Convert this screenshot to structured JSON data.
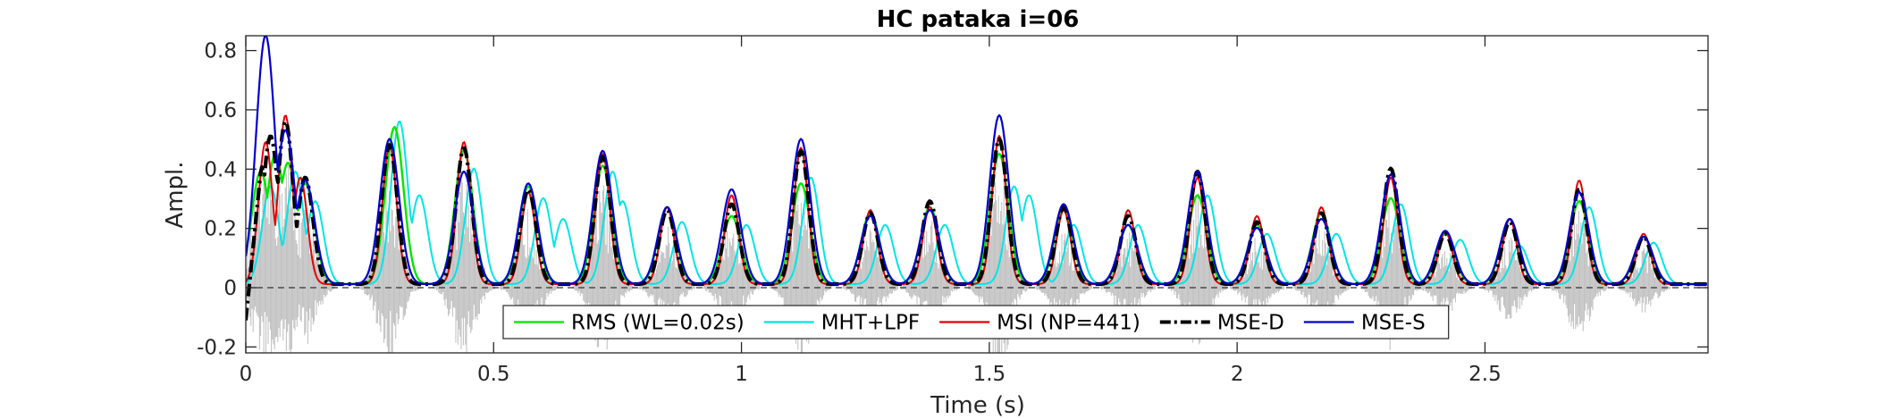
{
  "chart_data": {
    "type": "line",
    "title": "HC pataka i=06",
    "xlabel": "Time (s)",
    "ylabel": "Ampl.",
    "xlim": [
      0,
      2.95
    ],
    "ylim": [
      -0.22,
      0.85
    ],
    "xticks": [
      0,
      0.5,
      1,
      1.5,
      2,
      2.5
    ],
    "xtick_labels": [
      "0",
      "0.5",
      "1",
      "1.5",
      "2",
      "2.5"
    ],
    "yticks": [
      -0.2,
      0,
      0.2,
      0.4,
      0.6,
      0.8
    ],
    "ytick_labels": [
      "-0.2",
      "0",
      "0.2",
      "0.4",
      "0.6",
      "0.8"
    ],
    "zero_line": true,
    "legend_position": "bottom-center",
    "colors": {
      "signal": "#bdbdbd",
      "rms": "#00e600",
      "mht": "#00e5e5",
      "msi": "#e60000",
      "mse_d": "#000000",
      "mse_s": "#0000cc"
    },
    "background_signal": {
      "name": "",
      "color": "#bdbdbd",
      "envelope_peak_scale": 0.85,
      "negative_scale": 0.55
    },
    "series": [
      {
        "name": "RMS (WL=0.02s)",
        "key": "rms",
        "color": "#00e600",
        "style": "solid",
        "peaks": [
          [
            0.03,
            0.38
          ],
          [
            0.06,
            0.44
          ],
          [
            0.085,
            0.41
          ],
          [
            0.12,
            0.34
          ],
          [
            0.3,
            0.53
          ],
          [
            0.44,
            0.45
          ],
          [
            0.57,
            0.33
          ],
          [
            0.72,
            0.4
          ],
          [
            0.85,
            0.26
          ],
          [
            0.98,
            0.23
          ],
          [
            1.12,
            0.34
          ],
          [
            1.26,
            0.24
          ],
          [
            1.38,
            0.26
          ],
          [
            1.52,
            0.44
          ],
          [
            1.65,
            0.25
          ],
          [
            1.78,
            0.2
          ],
          [
            1.92,
            0.3
          ],
          [
            2.04,
            0.2
          ],
          [
            2.17,
            0.24
          ],
          [
            2.31,
            0.29
          ],
          [
            2.42,
            0.17
          ],
          [
            2.55,
            0.22
          ],
          [
            2.69,
            0.28
          ],
          [
            2.82,
            0.16
          ]
        ]
      },
      {
        "name": "MHT+LPF",
        "key": "mht",
        "color": "#00e5e5",
        "style": "solid",
        "peaks": [
          [
            0.05,
            0.33
          ],
          [
            0.1,
            0.38
          ],
          [
            0.14,
            0.28
          ],
          [
            0.31,
            0.55
          ],
          [
            0.35,
            0.3
          ],
          [
            0.46,
            0.39
          ],
          [
            0.6,
            0.29
          ],
          [
            0.64,
            0.22
          ],
          [
            0.74,
            0.38
          ],
          [
            0.76,
            0.28
          ],
          [
            0.88,
            0.21
          ],
          [
            1.01,
            0.2
          ],
          [
            1.14,
            0.36
          ],
          [
            1.29,
            0.2
          ],
          [
            1.41,
            0.2
          ],
          [
            1.55,
            0.33
          ],
          [
            1.58,
            0.3
          ],
          [
            1.67,
            0.2
          ],
          [
            1.8,
            0.2
          ],
          [
            1.94,
            0.3
          ],
          [
            2.06,
            0.17
          ],
          [
            2.2,
            0.17
          ],
          [
            2.33,
            0.27
          ],
          [
            2.45,
            0.15
          ],
          [
            2.57,
            0.13
          ],
          [
            2.71,
            0.26
          ],
          [
            2.84,
            0.14
          ]
        ]
      },
      {
        "name": "MSI (NP=441)",
        "key": "msi",
        "color": "#e60000",
        "style": "solid",
        "peaks": [
          [
            0.04,
            0.48
          ],
          [
            0.08,
            0.57
          ],
          [
            0.11,
            0.36
          ],
          [
            0.29,
            0.47
          ],
          [
            0.44,
            0.48
          ],
          [
            0.57,
            0.31
          ],
          [
            0.72,
            0.44
          ],
          [
            0.85,
            0.26
          ],
          [
            0.98,
            0.3
          ],
          [
            1.12,
            0.46
          ],
          [
            1.26,
            0.25
          ],
          [
            1.38,
            0.26
          ],
          [
            1.52,
            0.5
          ],
          [
            1.65,
            0.25
          ],
          [
            1.78,
            0.25
          ],
          [
            1.92,
            0.36
          ],
          [
            2.04,
            0.23
          ],
          [
            2.17,
            0.26
          ],
          [
            2.31,
            0.36
          ],
          [
            2.42,
            0.18
          ],
          [
            2.55,
            0.22
          ],
          [
            2.69,
            0.35
          ],
          [
            2.82,
            0.17
          ]
        ]
      },
      {
        "name": "MSE-D",
        "key": "mse_d",
        "color": "#000000",
        "style": "dashdot",
        "peaks": [
          [
            0.03,
            0.4
          ],
          [
            0.05,
            0.5
          ],
          [
            0.08,
            0.55
          ],
          [
            0.12,
            0.36
          ],
          [
            0.29,
            0.47
          ],
          [
            0.44,
            0.46
          ],
          [
            0.57,
            0.32
          ],
          [
            0.72,
            0.43
          ],
          [
            0.85,
            0.25
          ],
          [
            0.98,
            0.27
          ],
          [
            1.12,
            0.45
          ],
          [
            1.26,
            0.24
          ],
          [
            1.38,
            0.28
          ],
          [
            1.52,
            0.49
          ],
          [
            1.65,
            0.26
          ],
          [
            1.78,
            0.23
          ],
          [
            1.92,
            0.38
          ],
          [
            2.04,
            0.21
          ],
          [
            2.17,
            0.24
          ],
          [
            2.31,
            0.39
          ],
          [
            2.42,
            0.17
          ],
          [
            2.55,
            0.21
          ],
          [
            2.69,
            0.32
          ],
          [
            2.82,
            0.16
          ]
        ]
      },
      {
        "name": "MSE-S",
        "key": "mse_s",
        "color": "#0000cc",
        "style": "solid",
        "peaks": [
          [
            0.04,
            0.84
          ],
          [
            0.08,
            0.52
          ],
          [
            0.12,
            0.35
          ],
          [
            0.29,
            0.49
          ],
          [
            0.44,
            0.38
          ],
          [
            0.57,
            0.34
          ],
          [
            0.72,
            0.45
          ],
          [
            0.85,
            0.26
          ],
          [
            0.98,
            0.32
          ],
          [
            1.12,
            0.49
          ],
          [
            1.26,
            0.23
          ],
          [
            1.38,
            0.25
          ],
          [
            1.52,
            0.57
          ],
          [
            1.65,
            0.27
          ],
          [
            1.78,
            0.2
          ],
          [
            1.92,
            0.38
          ],
          [
            2.04,
            0.19
          ],
          [
            2.17,
            0.22
          ],
          [
            2.31,
            0.37
          ],
          [
            2.42,
            0.18
          ],
          [
            2.55,
            0.22
          ],
          [
            2.69,
            0.31
          ],
          [
            2.82,
            0.16
          ]
        ]
      }
    ]
  }
}
